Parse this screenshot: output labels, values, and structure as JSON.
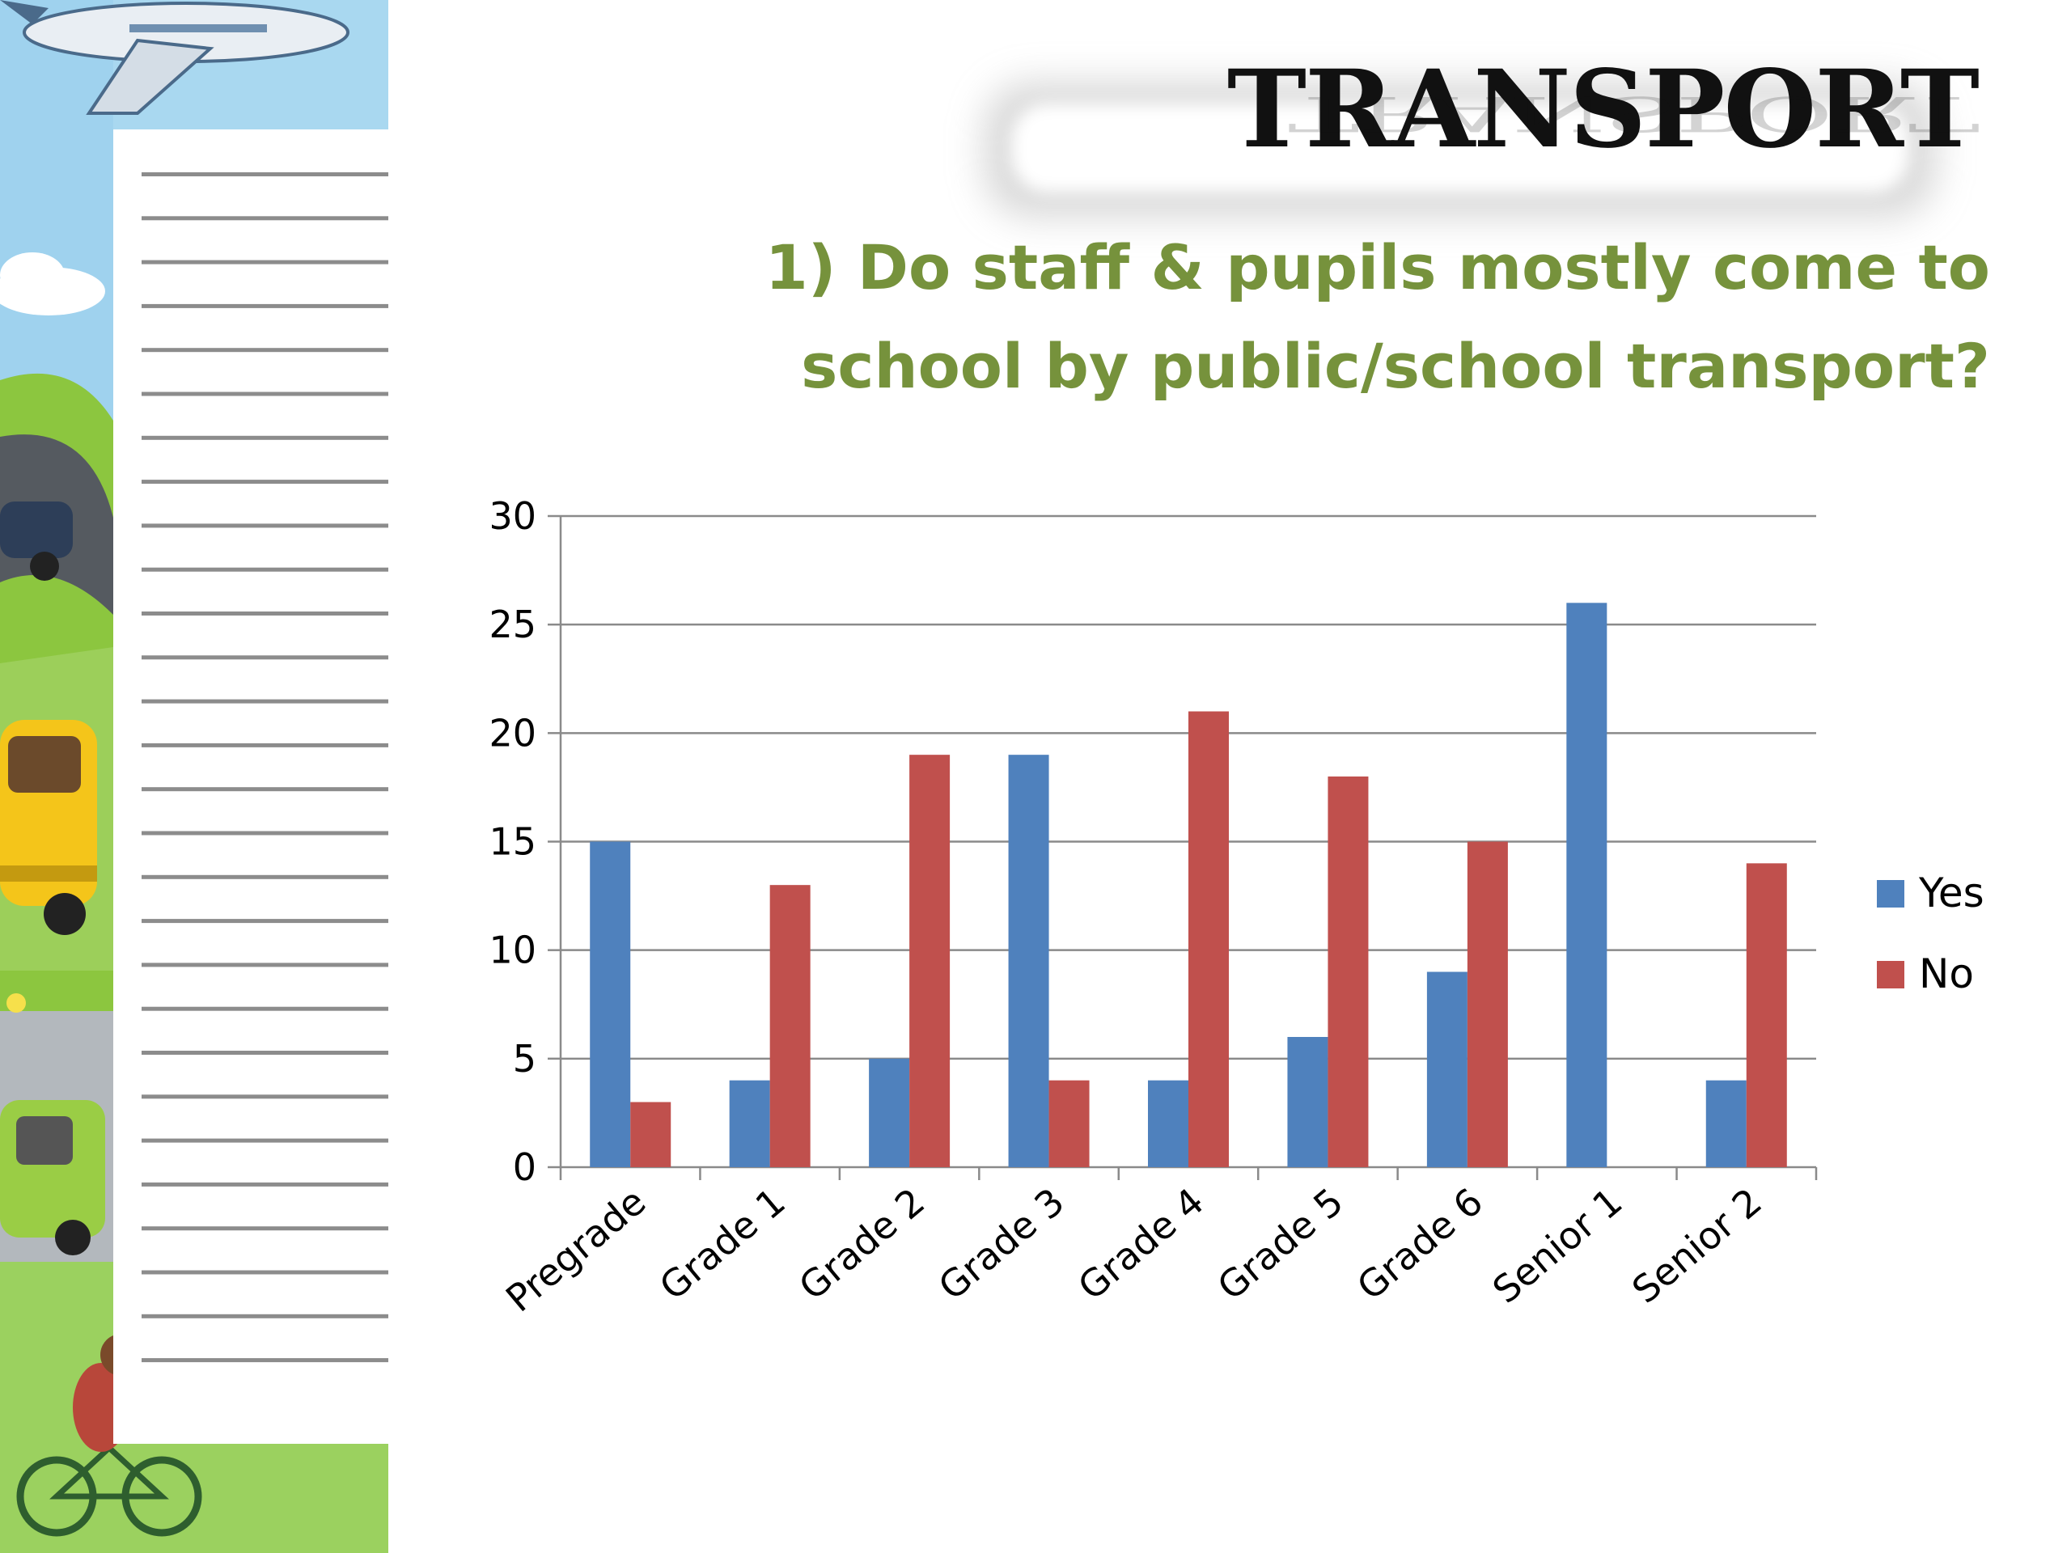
{
  "slide": {
    "title": "TRANSPORT",
    "question_line1": "1) Do staff & pupils mostly come to",
    "question_line2": "school by public/school transport?"
  },
  "illustration": {
    "icons": [
      "airplane-icon",
      "cloud-icon",
      "car-icon",
      "school-bus-icon",
      "van-icon",
      "cyclist-icon",
      "flower-icon"
    ]
  },
  "chart_data": {
    "type": "bar",
    "categories": [
      "Pregrade",
      "Grade 1",
      "Grade 2",
      "Grade 3",
      "Grade 4",
      "Grade 5",
      "Grade 6",
      "Senior 1",
      "Senior 2"
    ],
    "series": [
      {
        "name": "Yes",
        "color": "#4f81bd",
        "values": [
          15,
          4,
          5,
          19,
          4,
          6,
          9,
          26,
          4
        ]
      },
      {
        "name": "No",
        "color": "#c0504d",
        "values": [
          3,
          13,
          19,
          4,
          21,
          18,
          15,
          0,
          14
        ]
      }
    ],
    "ylim": [
      0,
      30
    ],
    "yticks": [
      0,
      5,
      10,
      15,
      20,
      25,
      30
    ],
    "grid": true,
    "legend": "right"
  }
}
